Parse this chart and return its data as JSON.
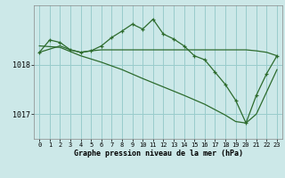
{
  "bg_color": "#cce8e8",
  "grid_color": "#99cccc",
  "line_color": "#2d6b2d",
  "title": "Graphe pression niveau de la mer (hPa)",
  "xlim": [
    -0.5,
    23.5
  ],
  "xticks": [
    0,
    1,
    2,
    3,
    4,
    5,
    6,
    7,
    8,
    9,
    10,
    11,
    12,
    13,
    14,
    15,
    16,
    17,
    18,
    19,
    20,
    21,
    22,
    23
  ],
  "yticks": [
    1017,
    1018
  ],
  "ylim": [
    1016.5,
    1019.2
  ],
  "line1_x": [
    0,
    1,
    2,
    3,
    4,
    5,
    6,
    7,
    8,
    9,
    10,
    11,
    12,
    13,
    14,
    15,
    16,
    17,
    18,
    19,
    20,
    21,
    22,
    23
  ],
  "line1_y": [
    1018.25,
    1018.5,
    1018.45,
    1018.3,
    1018.25,
    1018.28,
    1018.38,
    1018.55,
    1018.68,
    1018.82,
    1018.72,
    1018.92,
    1018.62,
    1018.52,
    1018.38,
    1018.18,
    1018.1,
    1017.85,
    1017.6,
    1017.28,
    1016.82,
    1017.38,
    1017.82,
    1018.18
  ],
  "line2_x": [
    0,
    2,
    3,
    4,
    5,
    6,
    7,
    8,
    9,
    10,
    11,
    12,
    13,
    14,
    19,
    20,
    21,
    22,
    23
  ],
  "line2_y": [
    1018.25,
    1018.38,
    1018.3,
    1018.25,
    1018.28,
    1018.3,
    1018.3,
    1018.3,
    1018.3,
    1018.3,
    1018.3,
    1018.3,
    1018.3,
    1018.3,
    1018.3,
    1018.3,
    1018.28,
    1018.25,
    1018.18
  ],
  "line3_x": [
    0,
    2,
    4,
    6,
    8,
    10,
    12,
    14,
    16,
    18,
    19,
    20,
    21,
    22,
    23
  ],
  "line3_y": [
    1018.38,
    1018.35,
    1018.18,
    1018.05,
    1017.9,
    1017.72,
    1017.55,
    1017.38,
    1017.2,
    1016.98,
    1016.85,
    1016.82,
    1017.0,
    1017.45,
    1017.9
  ]
}
